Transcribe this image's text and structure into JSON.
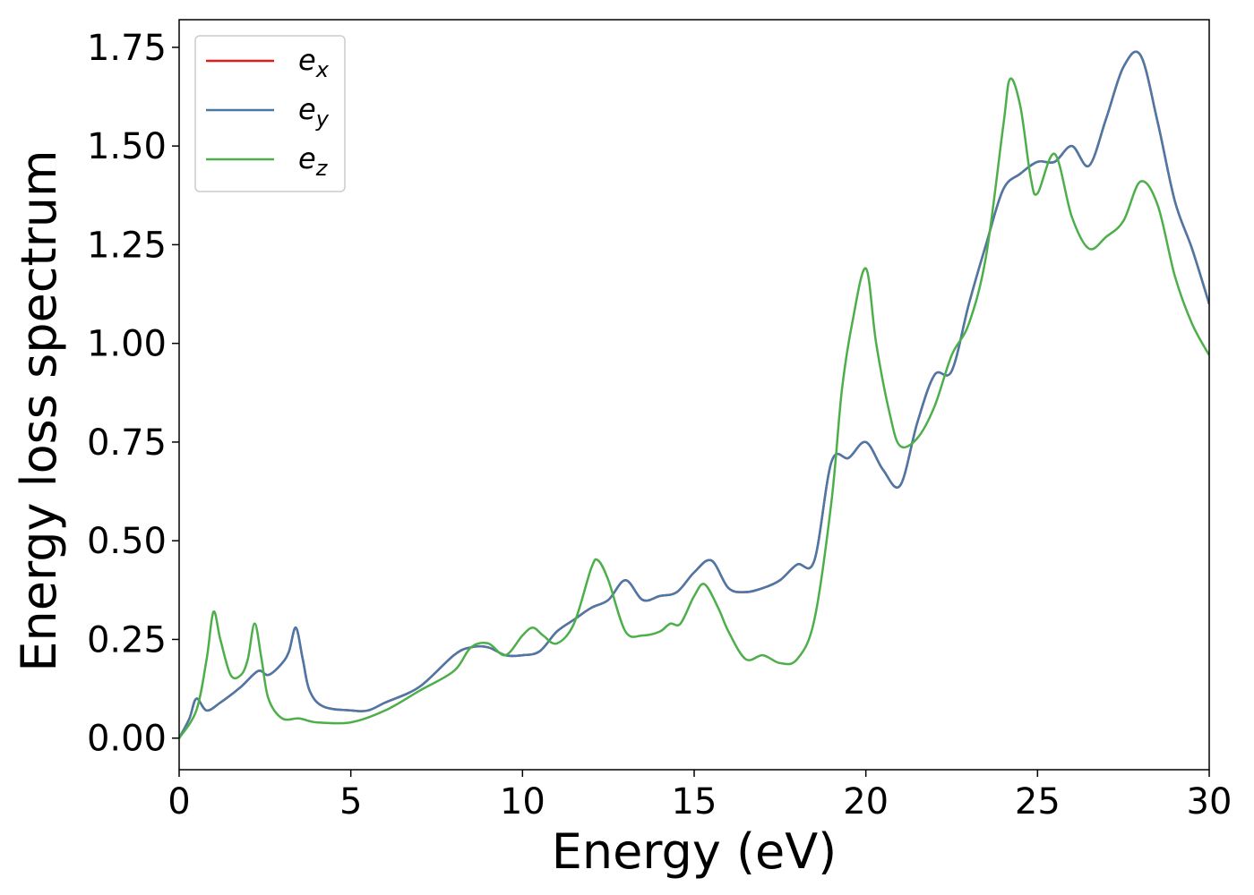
{
  "chart_data": {
    "type": "line",
    "title": "",
    "xlabel": "Energy (eV)",
    "ylabel": "Energy loss spectrum",
    "xlim": [
      0,
      30
    ],
    "ylim": [
      -0.08,
      1.82
    ],
    "xticks": [
      0,
      5,
      10,
      15,
      20,
      25,
      30
    ],
    "xtick_labels": [
      "0",
      "5",
      "10",
      "15",
      "20",
      "25",
      "30"
    ],
    "yticks": [
      0,
      0.25,
      0.5,
      0.75,
      1.0,
      1.25,
      1.5,
      1.75
    ],
    "ytick_labels": [
      "0.00",
      "0.25",
      "0.50",
      "0.75",
      "1.00",
      "1.25",
      "1.50",
      "1.75"
    ],
    "grid": false,
    "legend": "top-left",
    "series": [
      {
        "name": "e",
        "subscript": "x",
        "color": "#e41a1c",
        "x": [
          0,
          0.3,
          0.5,
          0.8,
          1.2,
          1.8,
          2.3,
          2.6,
          3.0,
          3.2,
          3.4,
          3.6,
          3.8,
          4.2,
          5.0,
          5.5,
          6.0,
          7.0,
          8.0,
          8.5,
          9.0,
          9.5,
          10.0,
          10.5,
          11.0,
          11.5,
          12.0,
          12.5,
          13.0,
          13.5,
          14.0,
          14.5,
          15.0,
          15.5,
          16.0,
          16.5,
          17.0,
          17.5,
          18.0,
          18.5,
          19.0,
          19.5,
          20.0,
          20.5,
          21.0,
          21.5,
          22.0,
          22.5,
          23.0,
          23.5,
          24.0,
          24.5,
          25.0,
          25.5,
          26.0,
          26.5,
          27.0,
          27.5,
          28.0,
          28.5,
          29.0,
          29.5,
          30.0
        ],
        "y": [
          0.0,
          0.05,
          0.1,
          0.07,
          0.09,
          0.13,
          0.17,
          0.16,
          0.19,
          0.22,
          0.28,
          0.2,
          0.12,
          0.08,
          0.07,
          0.07,
          0.09,
          0.13,
          0.21,
          0.23,
          0.23,
          0.21,
          0.21,
          0.22,
          0.27,
          0.3,
          0.33,
          0.35,
          0.4,
          0.35,
          0.36,
          0.37,
          0.42,
          0.45,
          0.38,
          0.37,
          0.38,
          0.4,
          0.44,
          0.45,
          0.7,
          0.71,
          0.75,
          0.68,
          0.64,
          0.8,
          0.92,
          0.93,
          1.1,
          1.25,
          1.39,
          1.43,
          1.46,
          1.46,
          1.5,
          1.45,
          1.57,
          1.7,
          1.73,
          1.56,
          1.36,
          1.24,
          1.1
        ]
      },
      {
        "name": "e",
        "subscript": "y",
        "color": "#4a79a8",
        "x": [
          0,
          0.3,
          0.5,
          0.8,
          1.2,
          1.8,
          2.3,
          2.6,
          3.0,
          3.2,
          3.4,
          3.6,
          3.8,
          4.2,
          5.0,
          5.5,
          6.0,
          7.0,
          8.0,
          8.5,
          9.0,
          9.5,
          10.0,
          10.5,
          11.0,
          11.5,
          12.0,
          12.5,
          13.0,
          13.5,
          14.0,
          14.5,
          15.0,
          15.5,
          16.0,
          16.5,
          17.0,
          17.5,
          18.0,
          18.5,
          19.0,
          19.5,
          20.0,
          20.5,
          21.0,
          21.5,
          22.0,
          22.5,
          23.0,
          23.5,
          24.0,
          24.5,
          25.0,
          25.5,
          26.0,
          26.5,
          27.0,
          27.5,
          28.0,
          28.5,
          29.0,
          29.5,
          30.0
        ],
        "y": [
          0.0,
          0.05,
          0.1,
          0.07,
          0.09,
          0.13,
          0.17,
          0.16,
          0.19,
          0.22,
          0.28,
          0.2,
          0.12,
          0.08,
          0.07,
          0.07,
          0.09,
          0.13,
          0.21,
          0.23,
          0.23,
          0.21,
          0.21,
          0.22,
          0.27,
          0.3,
          0.33,
          0.35,
          0.4,
          0.35,
          0.36,
          0.37,
          0.42,
          0.45,
          0.38,
          0.37,
          0.38,
          0.4,
          0.44,
          0.45,
          0.7,
          0.71,
          0.75,
          0.68,
          0.64,
          0.8,
          0.92,
          0.93,
          1.1,
          1.25,
          1.39,
          1.43,
          1.46,
          1.46,
          1.5,
          1.45,
          1.57,
          1.7,
          1.73,
          1.56,
          1.36,
          1.24,
          1.1
        ]
      },
      {
        "name": "e",
        "subscript": "z",
        "color": "#4daf4a",
        "x": [
          0,
          0.5,
          0.8,
          1.0,
          1.2,
          1.5,
          1.8,
          2.0,
          2.2,
          2.4,
          2.6,
          3.0,
          3.5,
          4.0,
          5.0,
          6.0,
          7.0,
          8.0,
          8.5,
          9.0,
          9.5,
          10.0,
          10.3,
          10.6,
          11.0,
          11.5,
          12.0,
          12.2,
          12.5,
          13.0,
          13.5,
          14.0,
          14.3,
          14.6,
          15.0,
          15.3,
          15.7,
          16.0,
          16.5,
          17.0,
          17.5,
          18.0,
          18.5,
          19.0,
          19.3,
          19.6,
          20.0,
          20.3,
          20.7,
          21.0,
          21.5,
          22.0,
          22.5,
          23.0,
          23.5,
          24.0,
          24.2,
          24.5,
          24.8,
          25.0,
          25.5,
          26.0,
          26.5,
          27.0,
          27.5,
          28.0,
          28.5,
          29.0,
          29.5,
          30.0
        ],
        "y": [
          0.0,
          0.07,
          0.2,
          0.32,
          0.25,
          0.16,
          0.16,
          0.2,
          0.29,
          0.2,
          0.1,
          0.05,
          0.05,
          0.04,
          0.04,
          0.07,
          0.12,
          0.17,
          0.23,
          0.24,
          0.21,
          0.26,
          0.28,
          0.26,
          0.24,
          0.29,
          0.43,
          0.45,
          0.4,
          0.27,
          0.26,
          0.27,
          0.29,
          0.29,
          0.36,
          0.39,
          0.33,
          0.27,
          0.2,
          0.21,
          0.19,
          0.2,
          0.3,
          0.6,
          0.88,
          1.05,
          1.19,
          1.0,
          0.82,
          0.74,
          0.76,
          0.84,
          0.97,
          1.05,
          1.22,
          1.55,
          1.67,
          1.6,
          1.42,
          1.38,
          1.48,
          1.32,
          1.24,
          1.27,
          1.31,
          1.41,
          1.35,
          1.17,
          1.05,
          0.97
        ]
      }
    ]
  }
}
